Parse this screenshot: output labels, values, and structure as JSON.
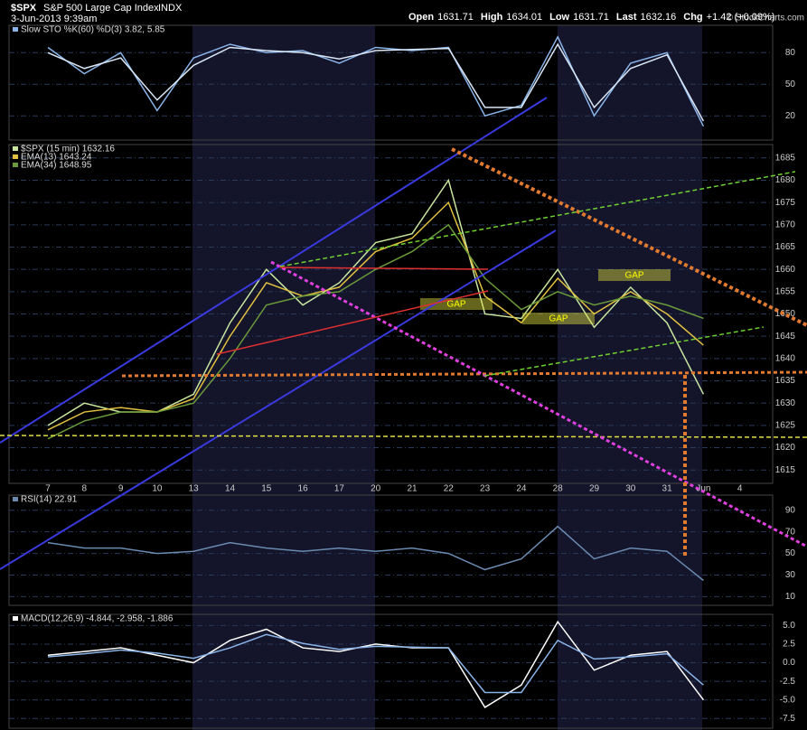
{
  "header": {
    "symbol": "$SPX",
    "name": "S&P 500 Large Cap Index",
    "exchange": "INDX",
    "datetime": "3-Jun-2013 9:39am",
    "quote": [
      {
        "label": "Open",
        "value": "1631.71"
      },
      {
        "label": "High",
        "value": "1634.01"
      },
      {
        "label": "Low",
        "value": "1631.71"
      },
      {
        "label": "Last",
        "value": "1632.16"
      },
      {
        "label": "Chg",
        "value": "+1.42 (+0.09%)"
      }
    ],
    "copyright": "© StockCharts.com"
  },
  "chart_data": [
    {
      "type": "line",
      "title": "Slow STO %K(60) %D(3) 3.82, 5.85",
      "series": [
        {
          "color": "#8ab4e8",
          "values": [
            85,
            60,
            80,
            25,
            75,
            88,
            80,
            82,
            70,
            85,
            82,
            85,
            20,
            30,
            95,
            20,
            70,
            80,
            10,
            null
          ]
        },
        {
          "color": "#d8e6f6",
          "values": [
            80,
            65,
            75,
            35,
            68,
            85,
            82,
            80,
            74,
            82,
            83,
            84,
            28,
            28,
            88,
            28,
            65,
            78,
            15,
            null
          ]
        }
      ],
      "ylim": [
        -3,
        106
      ],
      "yticks": [
        20,
        50,
        80
      ],
      "grid": true
    },
    {
      "type": "line",
      "title": "$SPX (15 min) 1632.16",
      "categories": [
        "7",
        "8",
        "9",
        "10",
        "13",
        "14",
        "15",
        "16",
        "17",
        "20",
        "21",
        "22",
        "23",
        "24",
        "28",
        "29",
        "30",
        "31",
        "Jun",
        "4"
      ],
      "series": [
        {
          "name": "$SPX (15 min) 1632.16",
          "color": "#c8e6a0",
          "values": [
            1625,
            1630,
            1628,
            1628,
            1632,
            1648,
            1660,
            1652,
            1657,
            1666,
            1668,
            1680,
            1650,
            1649,
            1660,
            1647,
            1656,
            1648,
            1632,
            null
          ]
        },
        {
          "name": "EMA(13) 1643.24",
          "color": "#e0c040",
          "values": [
            1624,
            1628,
            1629,
            1628,
            1631,
            1645,
            1657,
            1654,
            1656,
            1664,
            1667,
            1675,
            1654,
            1648,
            1658,
            1650,
            1655,
            1650,
            1643,
            null
          ]
        },
        {
          "name": "EMA(34) 1648.95",
          "color": "#6a9a3a",
          "values": [
            1622,
            1626,
            1628,
            1628,
            1630,
            1640,
            1652,
            1654,
            1655,
            1660,
            1664,
            1670,
            1658,
            1651,
            1655,
            1652,
            1654,
            1652,
            1649,
            null
          ]
        }
      ],
      "ylim": [
        1612,
        1688
      ],
      "yticks": [
        1615,
        1620,
        1625,
        1630,
        1635,
        1640,
        1645,
        1650,
        1655,
        1660,
        1665,
        1670,
        1675,
        1680,
        1685
      ],
      "grid": true,
      "annotations": [
        "GAP",
        "GAP",
        "GAP"
      ]
    },
    {
      "type": "line",
      "title": "RSI(14) 22.91",
      "series": [
        {
          "color": "#6a8ab0",
          "values": [
            60,
            55,
            55,
            50,
            52,
            60,
            55,
            52,
            55,
            52,
            55,
            50,
            35,
            45,
            75,
            45,
            55,
            52,
            25,
            null
          ]
        }
      ],
      "ylim": [
        2,
        104
      ],
      "yticks": [
        10,
        30,
        50,
        70,
        90
      ],
      "grid": true
    },
    {
      "type": "line",
      "title": "MACD(12,26,9) -4.844, -2.958, -1.886",
      "series": [
        {
          "color": "#ffffff",
          "values": [
            1,
            1.5,
            2,
            1,
            0,
            3,
            4.5,
            2,
            1.5,
            2.5,
            2,
            2,
            -6,
            -3,
            5.5,
            -1,
            1,
            1.5,
            -5,
            null
          ]
        },
        {
          "color": "#8ab4e8",
          "values": [
            0.8,
            1.2,
            1.7,
            1.3,
            0.6,
            2,
            3.8,
            2.6,
            1.8,
            2.2,
            2.1,
            2,
            -4,
            -4,
            3,
            0.5,
            0.8,
            1.2,
            -3,
            null
          ]
        }
      ],
      "ylim": [
        -8.8,
        6.5
      ],
      "yticks": [
        {
          "value": 5,
          "label": "5.0"
        },
        {
          "value": 2.5,
          "label": "2.5"
        },
        {
          "value": 0,
          "label": "0.0"
        },
        {
          "value": -2.5,
          "label": "-2.5"
        },
        {
          "value": -5,
          "label": "-5.0"
        },
        {
          "value": -7.5,
          "label": "-7.5"
        }
      ],
      "grid": true
    }
  ]
}
